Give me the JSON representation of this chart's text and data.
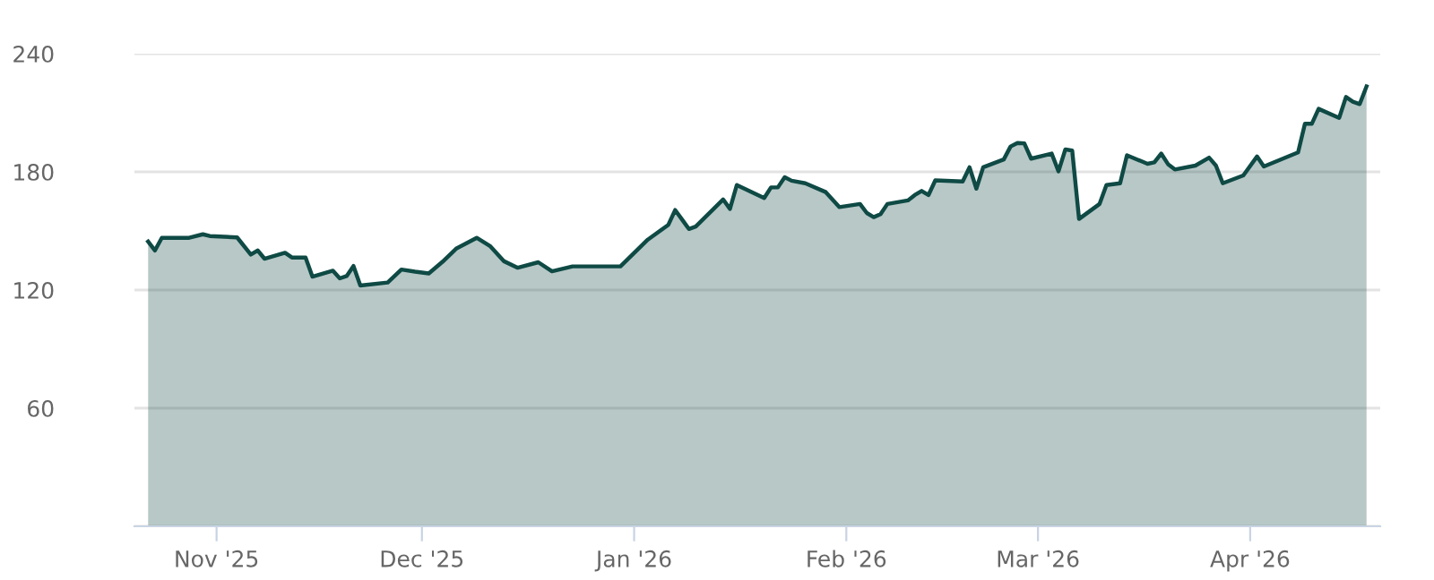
{
  "chart_data": {
    "type": "area",
    "x": [
      "2025-10-22",
      "2025-10-23",
      "2025-10-24",
      "2025-10-27",
      "2025-10-28",
      "2025-10-30",
      "2025-10-31",
      "2025-11-04",
      "2025-11-06",
      "2025-11-07",
      "2025-11-08",
      "2025-11-11",
      "2025-11-12",
      "2025-11-14",
      "2025-11-15",
      "2025-11-18",
      "2025-11-19",
      "2025-11-20",
      "2025-11-21",
      "2025-11-22",
      "2025-11-26",
      "2025-11-28",
      "2025-11-30",
      "2025-12-02",
      "2025-12-04",
      "2025-12-06",
      "2025-12-09",
      "2025-12-11",
      "2025-12-13",
      "2025-12-15",
      "2025-12-18",
      "2025-12-20",
      "2025-12-23",
      "2025-12-30",
      "2026-01-03",
      "2026-01-06",
      "2026-01-07",
      "2026-01-09",
      "2026-01-10",
      "2026-01-14",
      "2026-01-15",
      "2026-01-16",
      "2026-01-20",
      "2026-01-21",
      "2026-01-22",
      "2026-01-23",
      "2026-01-24",
      "2026-01-26",
      "2026-01-29",
      "2026-01-31",
      "2026-02-03",
      "2026-02-04",
      "2026-02-05",
      "2026-02-06",
      "2026-02-07",
      "2026-02-10",
      "2026-02-11",
      "2026-02-12",
      "2026-02-13",
      "2026-02-14",
      "2026-02-18",
      "2026-02-19",
      "2026-02-20",
      "2026-02-21",
      "2026-02-24",
      "2026-02-25",
      "2026-02-26",
      "2026-02-27",
      "2026-02-28",
      "2026-03-03",
      "2026-03-04",
      "2026-03-05",
      "2026-03-06",
      "2026-03-07",
      "2026-03-10",
      "2026-03-11",
      "2026-03-13",
      "2026-03-14",
      "2026-03-17",
      "2026-03-18",
      "2026-03-19",
      "2026-03-20",
      "2026-03-21",
      "2026-03-24",
      "2026-03-26",
      "2026-03-27",
      "2026-03-28",
      "2026-03-31",
      "2026-04-02",
      "2026-04-03",
      "2026-04-08",
      "2026-04-09",
      "2026-04-10",
      "2026-04-11",
      "2026-04-14",
      "2026-04-15",
      "2026-04-16",
      "2026-04-17",
      "2026-04-18"
    ],
    "series": [
      {
        "color": "#0f4a45",
        "values": [
          144.6,
          140.1,
          146.5,
          146.5,
          146.5,
          148.3,
          147.4,
          146.7,
          138,
          140.1,
          135.9,
          138.9,
          136.5,
          136.5,
          126.8,
          129.8,
          125.9,
          127.1,
          132.2,
          122.3,
          123.8,
          130.4,
          129.3,
          128.4,
          134.3,
          141,
          146.5,
          142.2,
          134.6,
          131.3,
          134.1,
          129.5,
          132,
          132,
          145.6,
          153.1,
          160.6,
          151,
          152.2,
          166,
          161.2,
          173.3,
          166.7,
          172.1,
          172.1,
          177.3,
          175.5,
          174.2,
          169.7,
          162.1,
          163.7,
          159.1,
          157,
          158.5,
          163.7,
          165.5,
          168.2,
          170.3,
          168.2,
          175.7,
          175.1,
          182.3,
          171.5,
          182.3,
          186.3,
          192.9,
          194.7,
          194.5,
          186.7,
          189.3,
          180.3,
          191.4,
          190.8,
          156.1,
          163.7,
          173.3,
          174.2,
          188.4,
          184.1,
          184.8,
          189.3,
          183.9,
          181.2,
          183.2,
          187.2,
          183.2,
          174.2,
          178.2,
          187.8,
          182.7,
          189.9,
          204.4,
          204.4,
          212,
          207.4,
          218,
          215.6,
          214.4,
          223.4
        ]
      }
    ],
    "xlim": [
      "2025-10-20",
      "2026-04-20"
    ],
    "xticks": [
      {
        "value": "2025-11-01",
        "label": "Nov '25"
      },
      {
        "value": "2025-12-01",
        "label": "Dec '25"
      },
      {
        "value": "2026-01-01",
        "label": "Jan '26"
      },
      {
        "value": "2026-02-01",
        "label": "Feb '26"
      },
      {
        "value": "2026-03-01",
        "label": "Mar '26"
      },
      {
        "value": "2026-04-01",
        "label": "Apr '26"
      }
    ],
    "ylim": [
      0,
      240
    ],
    "yticks": [
      {
        "value": 0,
        "label": null
      },
      60,
      120,
      180,
      240
    ],
    "grid": "y"
  }
}
